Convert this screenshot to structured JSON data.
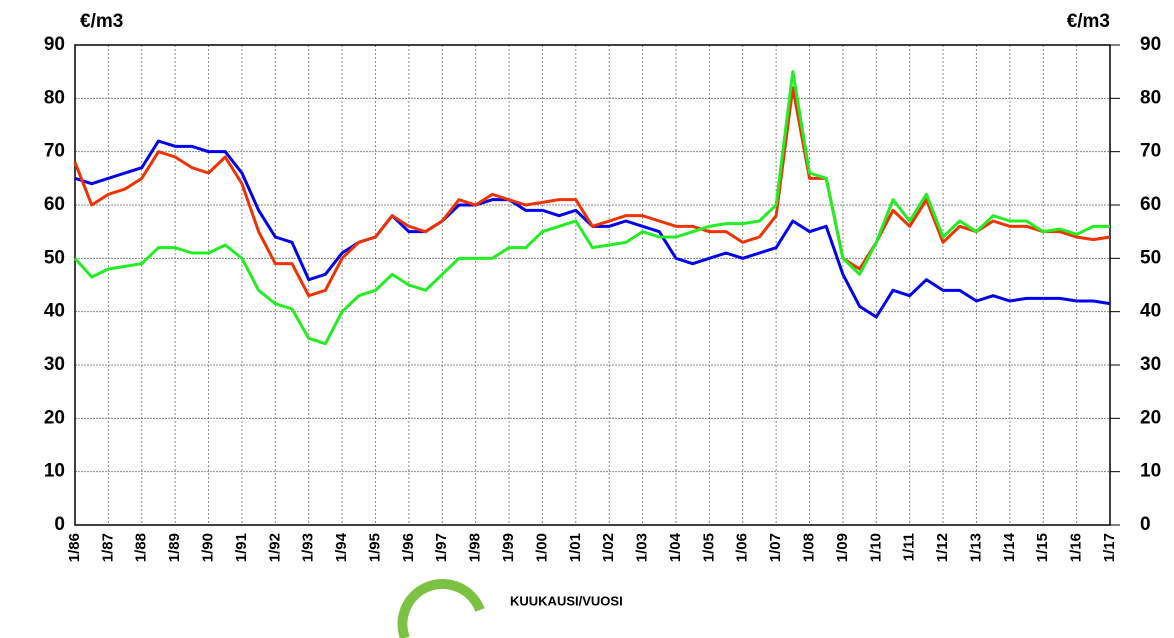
{
  "chart_data": {
    "type": "line",
    "y_label": "€/m3",
    "x_label": "KUUKAUSI/VUOSI",
    "categories": [
      "1/86",
      null,
      "1/87",
      null,
      "1/88",
      null,
      "1/89",
      null,
      "1/90",
      null,
      "1/91",
      null,
      "1/92",
      null,
      "1/93",
      null,
      "1/94",
      null,
      "1/95",
      null,
      "1/96",
      null,
      "1/97",
      null,
      "1/98",
      null,
      "1/99",
      null,
      "1/00",
      null,
      "1/01",
      null,
      "1/02",
      null,
      "1/03",
      null,
      "1/04",
      null,
      "1/05",
      null,
      "1/06",
      null,
      "1/07",
      null,
      "1/08",
      null,
      "1/09",
      null,
      "1/10",
      null,
      "1/11",
      null,
      "1/12",
      null,
      "1/13",
      null,
      "1/14",
      null,
      "1/15",
      null,
      "1/16",
      null,
      "1/17"
    ],
    "series": [
      {
        "color": "#0000ee",
        "values": [
          65,
          64,
          65,
          66,
          67,
          72,
          71,
          71,
          70,
          70,
          66,
          59,
          54,
          53,
          46,
          47,
          51,
          53,
          54,
          58,
          55,
          55,
          57,
          60,
          60,
          61,
          61,
          59,
          59,
          58,
          59,
          56,
          56,
          57,
          56,
          55,
          50,
          49,
          50,
          51,
          50,
          51,
          52,
          57,
          55,
          56,
          47,
          41,
          39,
          44,
          43,
          46,
          44,
          44,
          42,
          43,
          42,
          42.5,
          42.5,
          42.5,
          42,
          42,
          41.5
        ]
      },
      {
        "color": "#ee3300",
        "values": [
          68,
          60,
          62,
          63,
          65,
          70,
          69,
          67,
          66,
          69,
          64,
          55,
          49,
          49,
          43,
          44,
          50,
          53,
          54,
          58,
          56,
          55,
          57,
          61,
          60,
          62,
          61,
          60,
          60.5,
          61,
          61,
          56,
          57,
          58,
          58,
          57,
          56,
          56,
          55,
          55,
          53,
          54,
          58,
          82,
          65,
          65,
          50,
          48,
          53,
          59,
          56,
          61,
          53,
          56,
          55,
          57,
          56,
          56,
          55,
          55,
          54,
          53.5,
          54
        ]
      },
      {
        "color": "#22ee22",
        "values": [
          50,
          46.5,
          48,
          48.5,
          49,
          52,
          52,
          51,
          51,
          52.5,
          50,
          44,
          41.5,
          40.5,
          35,
          34,
          40,
          43,
          44,
          47,
          45,
          44,
          47,
          50,
          50,
          50,
          52,
          52,
          55,
          56,
          57,
          52,
          52.5,
          53,
          55,
          54,
          54,
          55,
          56,
          56.5,
          56.5,
          57,
          60,
          85,
          66,
          65,
          50,
          47,
          53,
          61,
          57,
          62,
          54,
          57,
          55,
          58,
          57,
          57,
          55,
          55.5,
          54.5,
          56,
          56
        ]
      }
    ],
    "ylim": [
      0,
      90
    ],
    "yticks": [
      0,
      10,
      20,
      30,
      40,
      50,
      60,
      70,
      80,
      90
    ],
    "grid": true
  }
}
